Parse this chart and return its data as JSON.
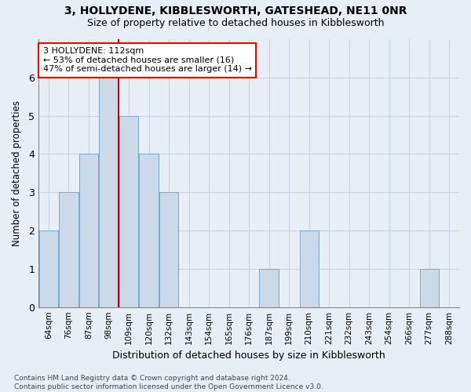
{
  "title1": "3, HOLLYDENE, KIBBLESWORTH, GATESHEAD, NE11 0NR",
  "title2": "Size of property relative to detached houses in Kibblesworth",
  "xlabel": "Distribution of detached houses by size in Kibblesworth",
  "ylabel": "Number of detached properties",
  "categories": [
    "64sqm",
    "76sqm",
    "87sqm",
    "98sqm",
    "109sqm",
    "120sqm",
    "132sqm",
    "143sqm",
    "154sqm",
    "165sqm",
    "176sqm",
    "187sqm",
    "199sqm",
    "210sqm",
    "221sqm",
    "232sqm",
    "243sqm",
    "254sqm",
    "266sqm",
    "277sqm",
    "288sqm"
  ],
  "values": [
    2,
    3,
    4,
    6,
    5,
    4,
    3,
    0,
    0,
    0,
    0,
    1,
    0,
    2,
    0,
    0,
    0,
    0,
    0,
    1,
    0
  ],
  "bar_color": "#ccd9e8",
  "bar_edge_color": "#7aaac8",
  "vline_color": "#cc0000",
  "vline_x_index": 3.5,
  "annotation_text": "3 HOLLYDENE: 112sqm\n← 53% of detached houses are smaller (16)\n47% of semi-detached houses are larger (14) →",
  "annotation_box_color": "white",
  "annotation_box_edge_color": "red",
  "grid_color": "#c8d4e0",
  "bg_color": "#e8eef5",
  "ylim": [
    0,
    7
  ],
  "yticks": [
    0,
    1,
    2,
    3,
    4,
    5,
    6,
    7
  ],
  "footnote": "Contains HM Land Registry data © Crown copyright and database right 2024.\nContains public sector information licensed under the Open Government Licence v3.0."
}
